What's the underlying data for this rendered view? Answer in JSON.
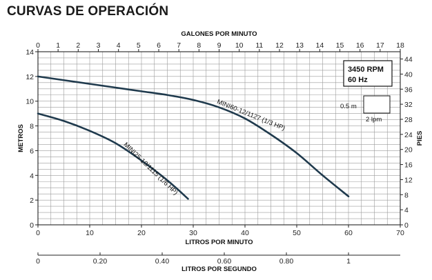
{
  "page": {
    "title": "CURVAS DE OPERACIÓN"
  },
  "colors": {
    "curve": "#1f3a4d",
    "grid": "#9a9a9a",
    "axis": "#222222"
  },
  "chart_data": {
    "type": "line",
    "xlabel": "LITROS POR MINUTO",
    "ylabel": "METROS",
    "xlim": [
      0,
      70
    ],
    "ylim": [
      0,
      14
    ],
    "x_ticks": [
      0,
      10,
      20,
      30,
      40,
      50,
      60,
      70
    ],
    "y_ticks": [
      0,
      2,
      4,
      6,
      8,
      10,
      12,
      14
    ],
    "top_axis": {
      "label": "GALONES POR MINUTO",
      "range": [
        0,
        18
      ],
      "ticks": [
        0,
        1,
        2,
        3,
        4,
        5,
        6,
        7,
        8,
        9,
        10,
        11,
        12,
        13,
        14,
        15,
        16,
        17,
        18
      ]
    },
    "right_axis": {
      "label": "PIES",
      "ticks": [
        0,
        4,
        8,
        12,
        16,
        20,
        24,
        28,
        32,
        36,
        40,
        44
      ]
    },
    "bottom_axis": {
      "label": "LITROS POR SEGUNDO",
      "ticks": [
        "0",
        "0.20",
        "0.40",
        "0.60",
        "0.80",
        "1"
      ],
      "tick_values": [
        0,
        0.2,
        0.4,
        0.6,
        0.8,
        1.0
      ]
    },
    "grid": true,
    "info_box": {
      "line1": "3450 RPM",
      "line2": "60 Hz"
    },
    "scale_box": {
      "height_label": "0.5 m",
      "width_label": "2 lpm"
    },
    "series": [
      {
        "name": "MINI60-12/1127 (1/3 HP)",
        "x": [
          0,
          5,
          10,
          15,
          20,
          25,
          30,
          35,
          40,
          45,
          50,
          55,
          60
        ],
        "y": [
          12.0,
          11.7,
          11.4,
          11.1,
          10.8,
          10.5,
          10.1,
          9.5,
          8.6,
          7.3,
          5.8,
          4.0,
          2.3
        ]
      },
      {
        "name": "MINI25-10/1115 (1/6 HP)",
        "x": [
          0,
          5,
          10,
          15,
          20,
          25,
          29
        ],
        "y": [
          9.0,
          8.4,
          7.6,
          6.6,
          5.2,
          3.6,
          2.1
        ]
      }
    ]
  }
}
